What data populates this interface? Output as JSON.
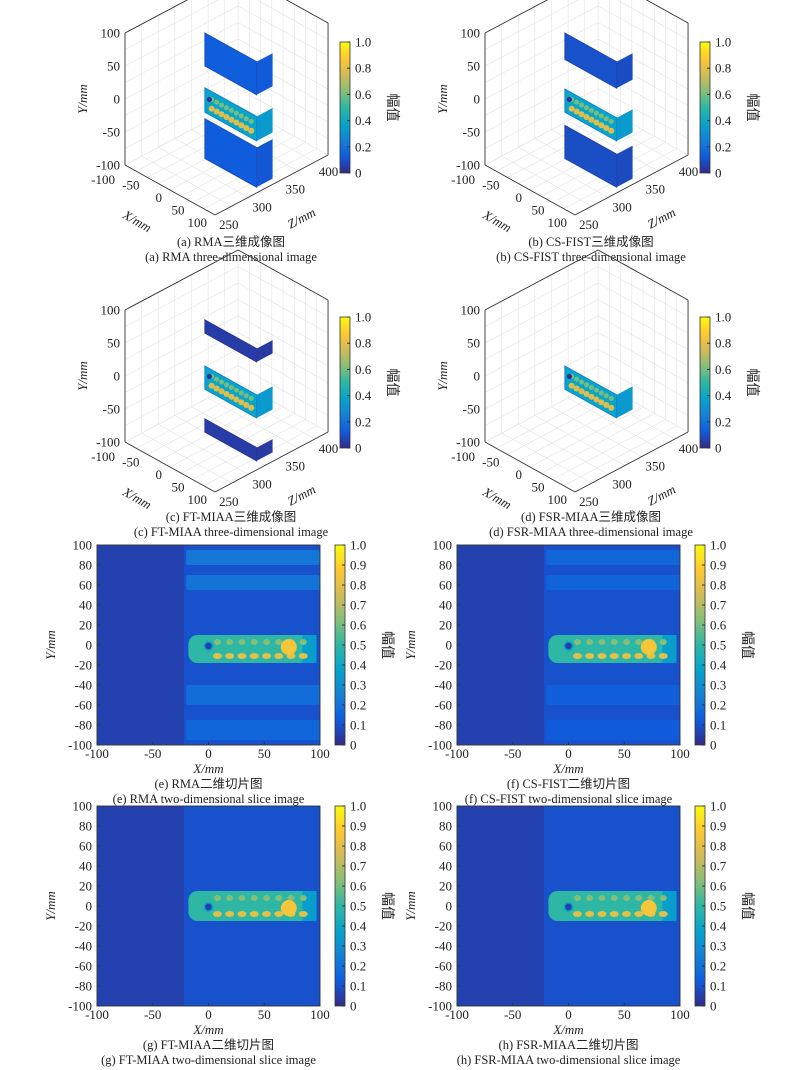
{
  "colormap": [
    "#352a87",
    "#0f5cdd",
    "#1481d6",
    "#06a4ca",
    "#2eb7a4",
    "#87bf77",
    "#d1bb59",
    "#fec832",
    "#f9fb0e"
  ],
  "chart_data": [
    {
      "id": "a",
      "type": "scatter3d",
      "caption_cn": "(a) RMA三维成像图",
      "caption_en": "(a) RMA three-dimensional image",
      "xlabel": "X/mm",
      "ylabel": "Y/mm",
      "zlabel": "Z/mm",
      "xticks": [
        "-100",
        "-50",
        "0",
        "50",
        "100"
      ],
      "yticks": [
        "100",
        "50",
        "0",
        "-50",
        "-100"
      ],
      "zticks": [
        "250",
        "300",
        "350",
        "400"
      ],
      "cbar_label": "幅值",
      "cbar_ticks": [
        "1.0",
        "0.8",
        "0.6",
        "0.4",
        "0.2",
        "0"
      ],
      "blobs": [
        {
          "y": [
            45,
            95
          ],
          "amp": 0.3
        },
        {
          "y": [
            -25,
            12
          ],
          "amp": 0.85
        },
        {
          "y": [
            -95,
            -35
          ],
          "amp": 0.28
        }
      ]
    },
    {
      "id": "b",
      "type": "scatter3d",
      "caption_cn": "(b) CS-FIST三维成像图",
      "caption_en": "(b) CS-FIST three-dimensional image",
      "xlabel": "X/mm",
      "ylabel": "Y/mm",
      "zlabel": "Z/mm",
      "xticks": [
        "-100",
        "-50",
        "0",
        "50",
        "100"
      ],
      "yticks": [
        "100",
        "50",
        "0",
        "-50",
        "-100"
      ],
      "zticks": [
        "250",
        "300",
        "350",
        "400"
      ],
      "cbar_label": "幅值",
      "cbar_ticks": [
        "1.0",
        "0.8",
        "0.6",
        "0.4",
        "0.2",
        "0"
      ],
      "blobs": [
        {
          "y": [
            55,
            95
          ],
          "amp": 0.22
        },
        {
          "y": [
            -25,
            10
          ],
          "amp": 0.85
        },
        {
          "y": [
            -95,
            -45
          ],
          "amp": 0.2
        }
      ]
    },
    {
      "id": "c",
      "type": "scatter3d",
      "caption_cn": "(c) FT-MIAA三维成像图",
      "caption_en": "(c) FT-MIAA three-dimensional image",
      "xlabel": "X/mm",
      "ylabel": "Y/mm",
      "zlabel": "Z/mm",
      "xticks": [
        "-100",
        "-50",
        "0",
        "50",
        "100"
      ],
      "yticks": [
        "100",
        "50",
        "0",
        "-50",
        "-100"
      ],
      "zticks": [
        "250",
        "300",
        "350",
        "400"
      ],
      "cbar_label": "幅值",
      "cbar_ticks": [
        "1.0",
        "0.8",
        "0.6",
        "0.4",
        "0.2",
        "0"
      ],
      "blobs": [
        {
          "y": [
            60,
            80
          ],
          "amp": 0.1
        },
        {
          "y": [
            -25,
            10
          ],
          "amp": 0.85
        },
        {
          "y": [
            -90,
            -70
          ],
          "amp": 0.1
        }
      ]
    },
    {
      "id": "d",
      "type": "scatter3d",
      "caption_cn": "(d) FSR-MIAA三维成像图",
      "caption_en": "(d) FSR-MIAA three-dimensional image",
      "xlabel": "X/mm",
      "ylabel": "Y/mm",
      "zlabel": "Z/mm",
      "xticks": [
        "-100",
        "-50",
        "0",
        "50",
        "100"
      ],
      "yticks": [
        "100",
        "50",
        "0",
        "-50",
        "-100"
      ],
      "zticks": [
        "250",
        "300",
        "350",
        "400"
      ],
      "cbar_label": "幅值",
      "cbar_ticks": [
        "1.0",
        "0.8",
        "0.6",
        "0.4",
        "0.2",
        "0"
      ],
      "blobs": [
        {
          "y": [
            -25,
            10
          ],
          "amp": 0.85
        }
      ]
    },
    {
      "id": "e",
      "type": "heatmap",
      "caption_cn": "(e) RMA二维切片图",
      "caption_en": "(e) RMA two-dimensional slice image",
      "xlabel": "X/mm",
      "ylabel": "Y/mm",
      "xlim": [
        -100,
        100
      ],
      "ylim": [
        -100,
        100
      ],
      "xticks": [
        "-100",
        "-50",
        "0",
        "50",
        "100"
      ],
      "yticks": [
        "100",
        "80",
        "60",
        "40",
        "20",
        "0",
        "-20",
        "-40",
        "-60",
        "-80",
        "-100"
      ],
      "cbar_label": "幅值",
      "cbar_ticks": [
        "1.0",
        "0.9",
        "0.8",
        "0.7",
        "0.6",
        "0.5",
        "0.4",
        "0.3",
        "0.2",
        "0.1",
        "0"
      ],
      "objects": [
        {
          "x": [
            -20,
            100
          ],
          "y": [
            80,
            95
          ],
          "amp": 0.3
        },
        {
          "x": [
            -20,
            100
          ],
          "y": [
            55,
            70
          ],
          "amp": 0.28
        },
        {
          "x": [
            -18,
            95
          ],
          "y": [
            -18,
            10
          ],
          "amp": 0.8
        },
        {
          "x": [
            -20,
            100
          ],
          "y": [
            -60,
            -40
          ],
          "amp": 0.25
        },
        {
          "x": [
            -20,
            100
          ],
          "y": [
            -95,
            -75
          ],
          "amp": 0.22
        }
      ]
    },
    {
      "id": "f",
      "type": "heatmap",
      "caption_cn": "(f) CS-FIST二维切片图",
      "caption_en": "(f) CS-FIST two-dimensional slice image",
      "xlabel": "X/mm",
      "ylabel": "Y/mm",
      "xlim": [
        -100,
        100
      ],
      "ylim": [
        -100,
        100
      ],
      "xticks": [
        "-100",
        "-50",
        "0",
        "50",
        "100"
      ],
      "yticks": [
        "100",
        "80",
        "60",
        "40",
        "20",
        "0",
        "-20",
        "-40",
        "-60",
        "-80",
        "-100"
      ],
      "cbar_label": "幅值",
      "cbar_ticks": [
        "1.0",
        "0.9",
        "0.8",
        "0.7",
        "0.6",
        "0.5",
        "0.4",
        "0.3",
        "0.2",
        "0.1",
        "0"
      ],
      "objects": [
        {
          "x": [
            -20,
            100
          ],
          "y": [
            80,
            95
          ],
          "amp": 0.22
        },
        {
          "x": [
            -20,
            100
          ],
          "y": [
            55,
            70
          ],
          "amp": 0.2
        },
        {
          "x": [
            -18,
            95
          ],
          "y": [
            -18,
            10
          ],
          "amp": 0.8
        },
        {
          "x": [
            -20,
            100
          ],
          "y": [
            -60,
            -40
          ],
          "amp": 0.18
        },
        {
          "x": [
            -20,
            100
          ],
          "y": [
            -95,
            -75
          ],
          "amp": 0.16
        }
      ]
    },
    {
      "id": "g",
      "type": "heatmap",
      "caption_cn": "(g) FT-MIAA二维切片图",
      "caption_en": "(g) FT-MIAA two-dimensional slice image",
      "xlabel": "X/mm",
      "ylabel": "Y/mm",
      "xlim": [
        -100,
        100
      ],
      "ylim": [
        -100,
        100
      ],
      "xticks": [
        "-100",
        "-50",
        "0",
        "50",
        "100"
      ],
      "yticks": [
        "100",
        "80",
        "60",
        "40",
        "20",
        "0",
        "-20",
        "-40",
        "-60",
        "-80",
        "-100"
      ],
      "cbar_label": "幅值",
      "cbar_ticks": [
        "1.0",
        "0.9",
        "0.8",
        "0.7",
        "0.6",
        "0.5",
        "0.4",
        "0.3",
        "0.2",
        "0.1",
        "0"
      ],
      "objects": [
        {
          "x": [
            -18,
            95
          ],
          "y": [
            -15,
            15
          ],
          "amp": 0.8
        }
      ]
    },
    {
      "id": "h",
      "type": "heatmap",
      "caption_cn": "(h) FSR-MIAA二维切片图",
      "caption_en": "(h) FSR-MIAA two-dimensional slice image",
      "xlabel": "X/mm",
      "ylabel": "Y/mm",
      "xlim": [
        -100,
        100
      ],
      "ylim": [
        -100,
        100
      ],
      "xticks": [
        "-100",
        "-50",
        "0",
        "50",
        "100"
      ],
      "yticks": [
        "100",
        "80",
        "60",
        "40",
        "20",
        "0",
        "-20",
        "-40",
        "-60",
        "-80",
        "-100"
      ],
      "cbar_label": "幅值",
      "cbar_ticks": [
        "1.0",
        "0.9",
        "0.8",
        "0.7",
        "0.6",
        "0.5",
        "0.4",
        "0.3",
        "0.2",
        "0.1",
        "0"
      ],
      "objects": [
        {
          "x": [
            -18,
            95
          ],
          "y": [
            -15,
            15
          ],
          "amp": 0.85
        }
      ]
    }
  ]
}
